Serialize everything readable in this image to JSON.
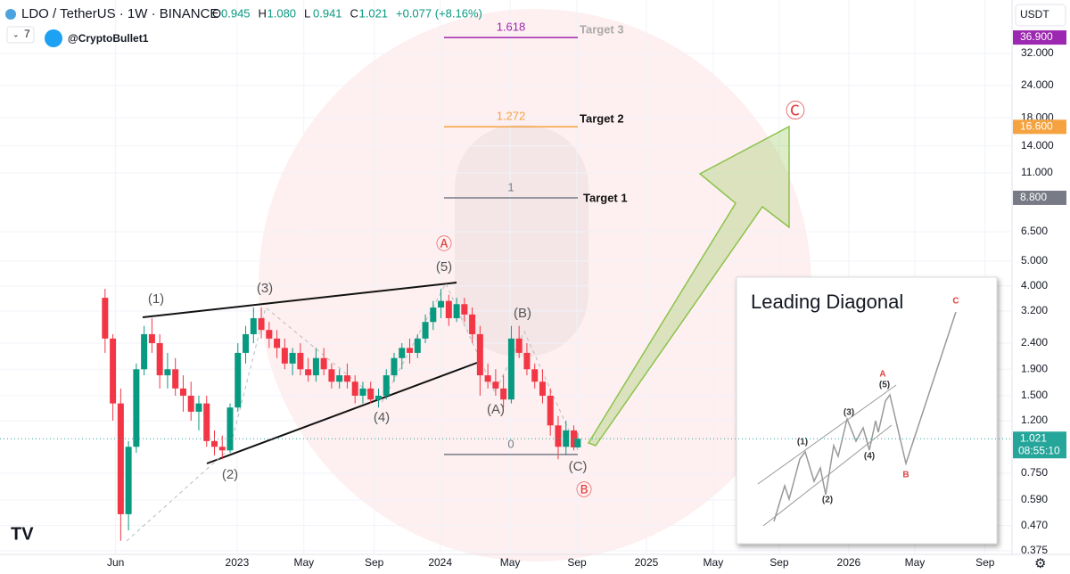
{
  "chart_data": {
    "type": "candlestick",
    "title": "LDO / TetherUS · 1W · BINANCE",
    "ohlc_legend": [
      {
        "label": "O",
        "value": "0.945"
      },
      {
        "label": "H",
        "value": "1.080"
      },
      {
        "label": "L",
        "value": "0.941"
      },
      {
        "label": "C",
        "value": "1.021"
      },
      {
        "label": "",
        "value": "+0.077 (+8.16%)"
      }
    ],
    "indicator_count": "7",
    "author": "@CryptoBullet1",
    "currency": "USDT",
    "log_scale": true,
    "up_color": "#089981",
    "down_color": "#f23645",
    "x": [
      0,
      2,
      4,
      6,
      8,
      10,
      12,
      14,
      16,
      18,
      20,
      22,
      24,
      26,
      28,
      30,
      32,
      34,
      36,
      38,
      40,
      42,
      44,
      46,
      48,
      50,
      52,
      54,
      56,
      58,
      60,
      62,
      64,
      66,
      68,
      70,
      72,
      74,
      76,
      78,
      80,
      82,
      84,
      86,
      88,
      90,
      92,
      94,
      96,
      98,
      100,
      102,
      104,
      106,
      108,
      110,
      112,
      114,
      116,
      118,
      120,
      121
    ],
    "candles": [
      [
        3.6,
        3.9,
        2.2,
        2.5
      ],
      [
        2.5,
        2.6,
        1.2,
        1.4
      ],
      [
        1.4,
        1.6,
        0.41,
        0.52
      ],
      [
        0.52,
        1.0,
        0.45,
        0.95
      ],
      [
        0.95,
        2.0,
        0.9,
        1.9
      ],
      [
        1.9,
        2.8,
        1.8,
        2.6
      ],
      [
        2.6,
        3.0,
        2.2,
        2.4
      ],
      [
        2.4,
        2.6,
        1.6,
        1.8
      ],
      [
        1.8,
        2.2,
        1.6,
        1.9
      ],
      [
        1.9,
        2.1,
        1.5,
        1.6
      ],
      [
        1.6,
        1.8,
        1.3,
        1.5
      ],
      [
        1.5,
        1.7,
        1.2,
        1.3
      ],
      [
        1.3,
        1.5,
        1.1,
        1.4
      ],
      [
        1.4,
        1.5,
        0.95,
        1.0
      ],
      [
        1.0,
        1.1,
        0.88,
        0.95
      ],
      [
        0.95,
        1.05,
        0.85,
        0.92
      ],
      [
        0.92,
        1.4,
        0.9,
        1.35
      ],
      [
        1.35,
        2.4,
        1.3,
        2.2
      ],
      [
        2.2,
        2.8,
        2.0,
        2.6
      ],
      [
        2.6,
        3.3,
        2.4,
        3.0
      ],
      [
        3.0,
        3.3,
        2.5,
        2.7
      ],
      [
        2.7,
        2.9,
        2.3,
        2.5
      ],
      [
        2.5,
        2.7,
        2.1,
        2.3
      ],
      [
        2.3,
        2.5,
        1.9,
        2.0
      ],
      [
        2.0,
        2.3,
        1.8,
        2.2
      ],
      [
        2.2,
        2.4,
        1.8,
        1.9
      ],
      [
        1.9,
        2.1,
        1.7,
        1.8
      ],
      [
        1.8,
        2.3,
        1.7,
        2.1
      ],
      [
        2.1,
        2.3,
        1.8,
        1.9
      ],
      [
        1.9,
        2.0,
        1.6,
        1.7
      ],
      [
        1.7,
        1.9,
        1.6,
        1.8
      ],
      [
        1.8,
        2.0,
        1.6,
        1.7
      ],
      [
        1.7,
        1.8,
        1.4,
        1.5
      ],
      [
        1.5,
        1.7,
        1.4,
        1.6
      ],
      [
        1.6,
        1.7,
        1.4,
        1.45
      ],
      [
        1.45,
        1.6,
        1.35,
        1.5
      ],
      [
        1.5,
        1.9,
        1.45,
        1.8
      ],
      [
        1.8,
        2.2,
        1.7,
        2.1
      ],
      [
        2.1,
        2.4,
        1.9,
        2.3
      ],
      [
        2.3,
        2.5,
        2.0,
        2.2
      ],
      [
        2.2,
        2.6,
        2.1,
        2.5
      ],
      [
        2.5,
        3.1,
        2.4,
        2.9
      ],
      [
        2.9,
        3.5,
        2.7,
        3.3
      ],
      [
        3.3,
        3.9,
        3.0,
        3.5
      ],
      [
        3.5,
        3.7,
        2.8,
        3.0
      ],
      [
        3.0,
        3.6,
        2.9,
        3.4
      ],
      [
        3.4,
        3.6,
        2.9,
        3.1
      ],
      [
        3.1,
        3.3,
        2.4,
        2.6
      ],
      [
        2.6,
        2.8,
        1.5,
        1.8
      ],
      [
        1.8,
        2.0,
        1.6,
        1.7
      ],
      [
        1.7,
        1.9,
        1.5,
        1.6
      ],
      [
        1.6,
        1.8,
        1.35,
        1.45
      ],
      [
        1.45,
        2.8,
        1.4,
        2.5
      ],
      [
        2.5,
        2.8,
        2.1,
        2.2
      ],
      [
        2.2,
        2.4,
        1.8,
        1.9
      ],
      [
        1.9,
        2.0,
        1.6,
        1.7
      ],
      [
        1.7,
        1.9,
        1.4,
        1.5
      ],
      [
        1.5,
        1.6,
        1.05,
        1.15
      ],
      [
        1.15,
        1.25,
        0.85,
        0.95
      ],
      [
        0.95,
        1.2,
        0.88,
        1.1
      ],
      [
        1.1,
        1.15,
        0.92,
        0.945
      ],
      [
        0.945,
        1.08,
        0.941,
        1.021
      ]
    ],
    "xlim": [
      -26.9,
      232.2
    ],
    "xticks": [
      {
        "value": 2.7,
        "label": "Jun"
      },
      {
        "value": 33.8,
        "label": "2023"
      },
      {
        "value": 50.9,
        "label": "May"
      },
      {
        "value": 68.9,
        "label": "Sep"
      },
      {
        "value": 85.8,
        "label": "2024"
      },
      {
        "value": 103.7,
        "label": "May"
      },
      {
        "value": 120.8,
        "label": "Sep"
      },
      {
        "value": 138.6,
        "label": "2025"
      },
      {
        "value": 155.7,
        "label": "May"
      },
      {
        "value": 172.6,
        "label": "Sep"
      },
      {
        "value": 190.4,
        "label": "2026"
      },
      {
        "value": 207.3,
        "label": "May"
      },
      {
        "value": 225.3,
        "label": "Sep"
      }
    ],
    "ylim": [
      0.363,
      51.6
    ],
    "yticks": [
      {
        "value": 32,
        "label": "32.000"
      },
      {
        "value": 24,
        "label": "24.000"
      },
      {
        "value": 18,
        "label": "18.000"
      },
      {
        "value": 14,
        "label": "14.000"
      },
      {
        "value": 11,
        "label": "11.000"
      },
      {
        "value": 6.5,
        "label": "6.500"
      },
      {
        "value": 5,
        "label": "5.000"
      },
      {
        "value": 4,
        "label": "4.000"
      },
      {
        "value": 3.2,
        "label": "3.200"
      },
      {
        "value": 2.4,
        "label": "2.400"
      },
      {
        "value": 1.9,
        "label": "1.900"
      },
      {
        "value": 1.5,
        "label": "1.500"
      },
      {
        "value": 1.2,
        "label": "1.200"
      },
      {
        "value": 0.75,
        "label": "0.750"
      },
      {
        "value": 0.59,
        "label": "0.590"
      },
      {
        "value": 0.47,
        "label": "0.470"
      },
      {
        "value": 0.375,
        "label": "0.375"
      }
    ],
    "fib_levels": [
      {
        "ratio": "1.618",
        "price": 36.9,
        "target": "Target 3",
        "color": "#9c27b0"
      },
      {
        "ratio": "1.272",
        "price": 16.6,
        "target": "Target 2",
        "color": "#f5a340"
      },
      {
        "ratio": "1",
        "price": 8.8,
        "target": "Target 1",
        "color": "#787b86"
      },
      {
        "ratio": "0",
        "price": 0.887,
        "color": "#787b86"
      }
    ],
    "price_badges": [
      {
        "value": 36.9,
        "label": "36.900",
        "color": "#9c27b0"
      },
      {
        "value": 16.6,
        "label": "16.600",
        "color": "#f5a340"
      },
      {
        "value": 8.8,
        "label": "8.800",
        "color": "#787b86"
      },
      {
        "value": 1.021,
        "label": "1.021",
        "color": "#26a69a",
        "countdown": "08:55:10"
      }
    ],
    "waves": [
      "(1)",
      "(2)",
      "(3)",
      "(4)",
      "(5)",
      "Ⓐ",
      "(A)",
      "(B)",
      "(C)",
      "Ⓑ",
      "Ⓒ"
    ],
    "inset": {
      "title": "Leading Diagonal",
      "labels": [
        "(1)",
        "(2)",
        "(3)",
        "(4)",
        "(5)",
        "A",
        "B",
        "C"
      ]
    }
  }
}
